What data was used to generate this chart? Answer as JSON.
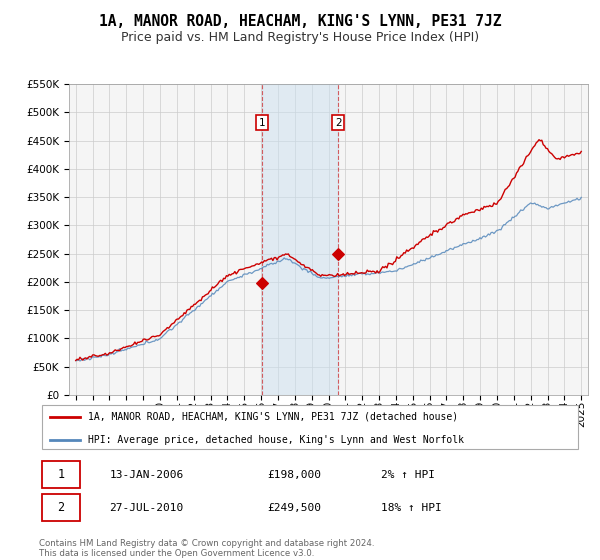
{
  "title": "1A, MANOR ROAD, HEACHAM, KING'S LYNN, PE31 7JZ",
  "subtitle": "Price paid vs. HM Land Registry's House Price Index (HPI)",
  "hpi_label": "HPI: Average price, detached house, King's Lynn and West Norfolk",
  "property_label": "1A, MANOR ROAD, HEACHAM, KING'S LYNN, PE31 7JZ (detached house)",
  "red_color": "#cc0000",
  "blue_color": "#5588bb",
  "shading_color": "#cce0f0",
  "purchase1_date": "13-JAN-2006",
  "purchase1_price": 198000,
  "purchase1_pct": "2%",
  "purchase1_year": 2006.04,
  "purchase2_date": "27-JUL-2010",
  "purchase2_price": 249500,
  "purchase2_pct": "18%",
  "purchase2_year": 2010.57,
  "footer": "Contains HM Land Registry data © Crown copyright and database right 2024.\nThis data is licensed under the Open Government Licence v3.0.",
  "ylim_min": 0,
  "ylim_max": 550000,
  "xmin": 1994.6,
  "xmax": 2025.4,
  "bg_color": "#ffffff",
  "plot_bg": "#f5f5f5",
  "grid_color": "#cccccc",
  "title_fontsize": 10.5,
  "subtitle_fontsize": 9,
  "tick_fontsize": 7.5
}
